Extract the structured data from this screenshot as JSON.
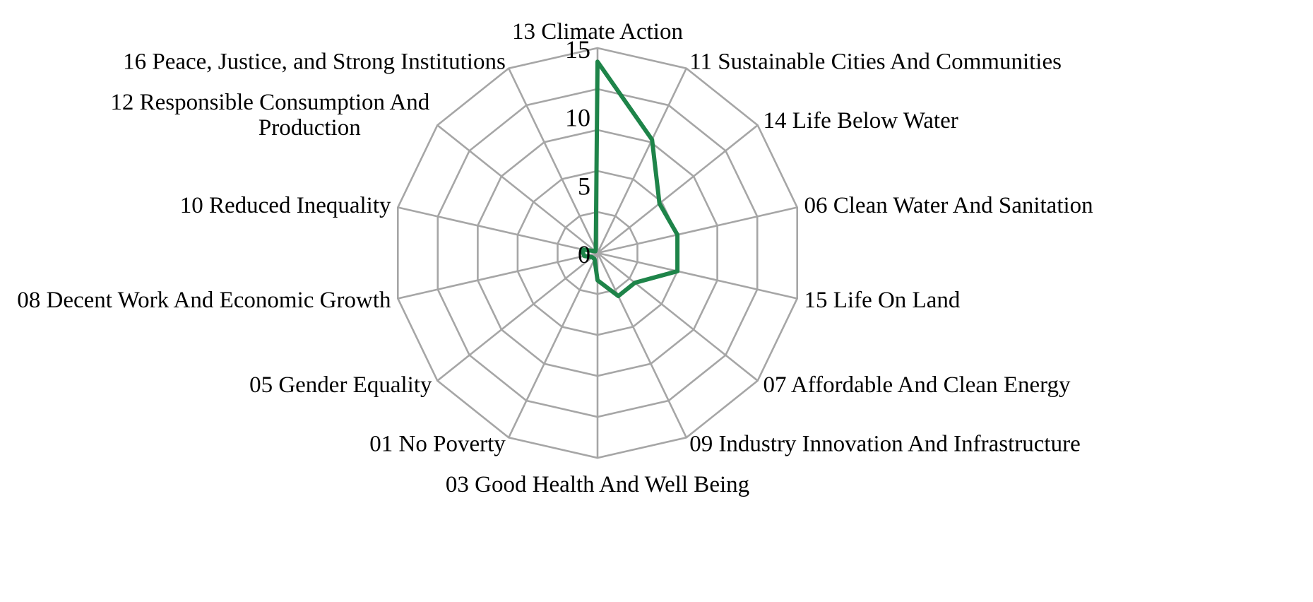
{
  "chart_data": {
    "type": "radar",
    "categories": [
      "13 Climate Action",
      "11 Sustainable Cities And Communities",
      "14 Life Below Water",
      "06 Clean Water And Sanitation",
      "15 Life On Land",
      "07 Affordable And Clean Energy",
      "09 Industry Innovation And Infrastructure",
      "03 Good Health And Well Being",
      "01 No Poverty",
      "05 Gender Equality",
      "08 Decent Work And Economic Growth",
      "10 Reduced Inequality",
      "12 Responsible Consumption And Production",
      "16 Peace, Justice, and Strong Institutions"
    ],
    "series": [
      {
        "values": [
          14,
          9.2,
          5.8,
          6,
          6,
          3.5,
          3.5,
          2,
          0.5,
          0.5,
          1,
          1.2,
          0.2,
          0.3
        ],
        "color": "#1e8449"
      }
    ],
    "rlim": [
      0,
      15
    ],
    "ticks": [
      "0",
      "5",
      "10",
      "15"
    ],
    "tick_values": [
      0,
      5,
      10,
      15
    ],
    "gridlines": [
      0,
      3,
      6,
      9,
      12,
      15
    ],
    "grid": true,
    "grid_color": "#a6a6a6",
    "legend": "none"
  }
}
